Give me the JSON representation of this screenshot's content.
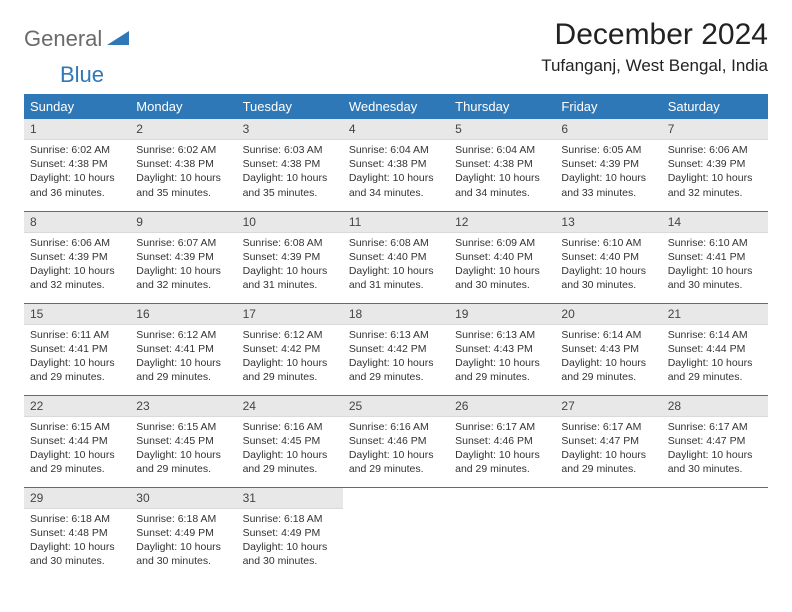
{
  "logo": {
    "part1": "General",
    "part2": "Blue",
    "tri_color": "#2f78b7"
  },
  "title": "December 2024",
  "location": "Tufanganj, West Bengal, India",
  "colors": {
    "header_bg": "#2f78b7",
    "header_text": "#ffffff",
    "daynum_bg": "#e8e8e8",
    "row_divider": "#2f78b7",
    "body_text": "#333333",
    "page_bg": "#ffffff"
  },
  "weekdays": [
    "Sunday",
    "Monday",
    "Tuesday",
    "Wednesday",
    "Thursday",
    "Friday",
    "Saturday"
  ],
  "days": [
    {
      "n": 1,
      "sr": "6:02 AM",
      "ss": "4:38 PM",
      "dl": "10 hours and 36 minutes."
    },
    {
      "n": 2,
      "sr": "6:02 AM",
      "ss": "4:38 PM",
      "dl": "10 hours and 35 minutes."
    },
    {
      "n": 3,
      "sr": "6:03 AM",
      "ss": "4:38 PM",
      "dl": "10 hours and 35 minutes."
    },
    {
      "n": 4,
      "sr": "6:04 AM",
      "ss": "4:38 PM",
      "dl": "10 hours and 34 minutes."
    },
    {
      "n": 5,
      "sr": "6:04 AM",
      "ss": "4:38 PM",
      "dl": "10 hours and 34 minutes."
    },
    {
      "n": 6,
      "sr": "6:05 AM",
      "ss": "4:39 PM",
      "dl": "10 hours and 33 minutes."
    },
    {
      "n": 7,
      "sr": "6:06 AM",
      "ss": "4:39 PM",
      "dl": "10 hours and 32 minutes."
    },
    {
      "n": 8,
      "sr": "6:06 AM",
      "ss": "4:39 PM",
      "dl": "10 hours and 32 minutes."
    },
    {
      "n": 9,
      "sr": "6:07 AM",
      "ss": "4:39 PM",
      "dl": "10 hours and 32 minutes."
    },
    {
      "n": 10,
      "sr": "6:08 AM",
      "ss": "4:39 PM",
      "dl": "10 hours and 31 minutes."
    },
    {
      "n": 11,
      "sr": "6:08 AM",
      "ss": "4:40 PM",
      "dl": "10 hours and 31 minutes."
    },
    {
      "n": 12,
      "sr": "6:09 AM",
      "ss": "4:40 PM",
      "dl": "10 hours and 30 minutes."
    },
    {
      "n": 13,
      "sr": "6:10 AM",
      "ss": "4:40 PM",
      "dl": "10 hours and 30 minutes."
    },
    {
      "n": 14,
      "sr": "6:10 AM",
      "ss": "4:41 PM",
      "dl": "10 hours and 30 minutes."
    },
    {
      "n": 15,
      "sr": "6:11 AM",
      "ss": "4:41 PM",
      "dl": "10 hours and 29 minutes."
    },
    {
      "n": 16,
      "sr": "6:12 AM",
      "ss": "4:41 PM",
      "dl": "10 hours and 29 minutes."
    },
    {
      "n": 17,
      "sr": "6:12 AM",
      "ss": "4:42 PM",
      "dl": "10 hours and 29 minutes."
    },
    {
      "n": 18,
      "sr": "6:13 AM",
      "ss": "4:42 PM",
      "dl": "10 hours and 29 minutes."
    },
    {
      "n": 19,
      "sr": "6:13 AM",
      "ss": "4:43 PM",
      "dl": "10 hours and 29 minutes."
    },
    {
      "n": 20,
      "sr": "6:14 AM",
      "ss": "4:43 PM",
      "dl": "10 hours and 29 minutes."
    },
    {
      "n": 21,
      "sr": "6:14 AM",
      "ss": "4:44 PM",
      "dl": "10 hours and 29 minutes."
    },
    {
      "n": 22,
      "sr": "6:15 AM",
      "ss": "4:44 PM",
      "dl": "10 hours and 29 minutes."
    },
    {
      "n": 23,
      "sr": "6:15 AM",
      "ss": "4:45 PM",
      "dl": "10 hours and 29 minutes."
    },
    {
      "n": 24,
      "sr": "6:16 AM",
      "ss": "4:45 PM",
      "dl": "10 hours and 29 minutes."
    },
    {
      "n": 25,
      "sr": "6:16 AM",
      "ss": "4:46 PM",
      "dl": "10 hours and 29 minutes."
    },
    {
      "n": 26,
      "sr": "6:17 AM",
      "ss": "4:46 PM",
      "dl": "10 hours and 29 minutes."
    },
    {
      "n": 27,
      "sr": "6:17 AM",
      "ss": "4:47 PM",
      "dl": "10 hours and 29 minutes."
    },
    {
      "n": 28,
      "sr": "6:17 AM",
      "ss": "4:47 PM",
      "dl": "10 hours and 30 minutes."
    },
    {
      "n": 29,
      "sr": "6:18 AM",
      "ss": "4:48 PM",
      "dl": "10 hours and 30 minutes."
    },
    {
      "n": 30,
      "sr": "6:18 AM",
      "ss": "4:49 PM",
      "dl": "10 hours and 30 minutes."
    },
    {
      "n": 31,
      "sr": "6:18 AM",
      "ss": "4:49 PM",
      "dl": "10 hours and 30 minutes."
    }
  ],
  "labels": {
    "sunrise": "Sunrise:",
    "sunset": "Sunset:",
    "daylight": "Daylight:"
  }
}
